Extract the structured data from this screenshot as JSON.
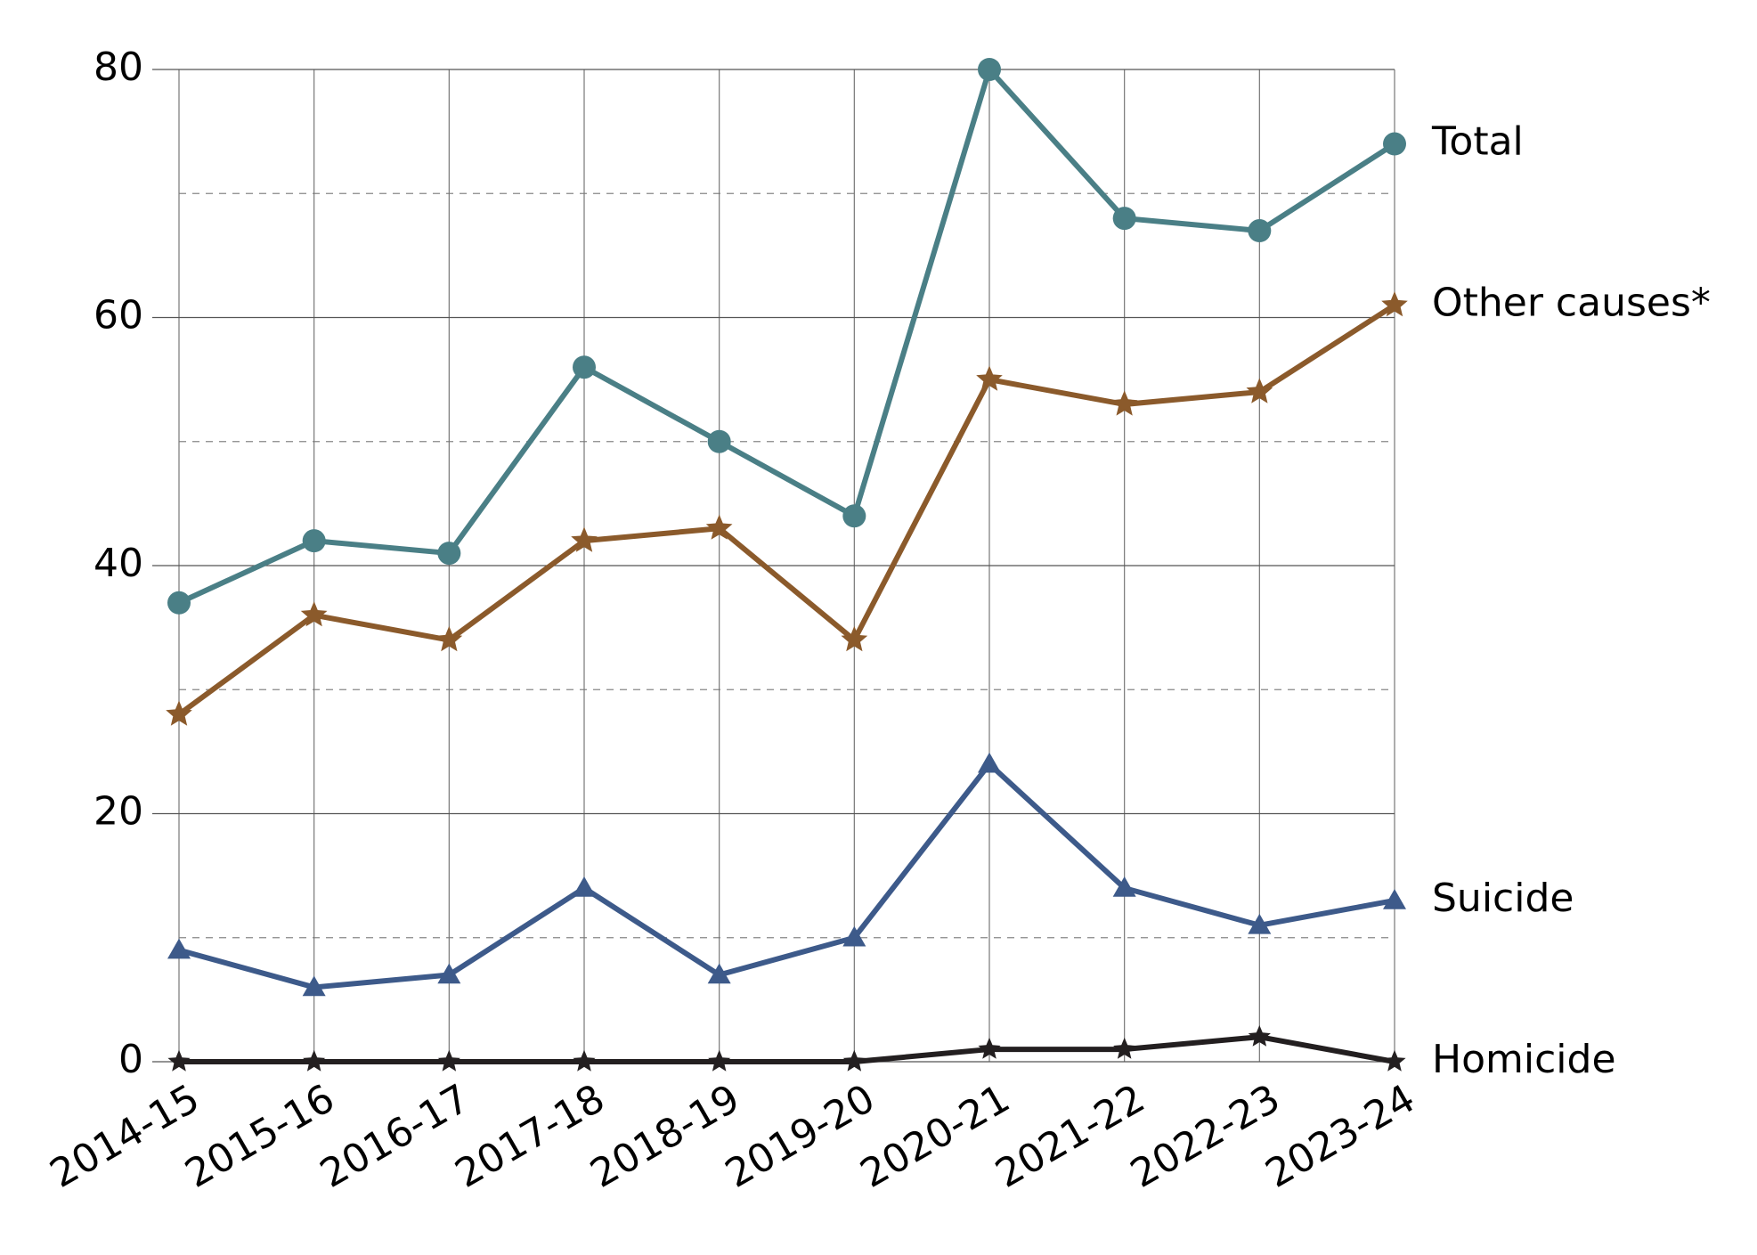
{
  "chart_data": {
    "type": "line",
    "categories": [
      "2014-15",
      "2015-16",
      "2016-17",
      "2017-18",
      "2018-19",
      "2019-20",
      "2020-21",
      "2021-22",
      "2022-23",
      "2023-24"
    ],
    "series": [
      {
        "name": "Total",
        "color": "#4a7f86",
        "marker": "circle",
        "values": [
          37,
          42,
          41,
          56,
          50,
          44,
          80,
          68,
          67,
          74
        ]
      },
      {
        "name": "Other causes*",
        "color": "#8b5a2b",
        "marker": "star",
        "values": [
          28,
          36,
          34,
          42,
          43,
          34,
          55,
          53,
          54,
          61
        ]
      },
      {
        "name": "Suicide",
        "color": "#3d5a8a",
        "marker": "triangle",
        "values": [
          9,
          6,
          7,
          14,
          7,
          10,
          24,
          14,
          11,
          13
        ]
      },
      {
        "name": "Homicide",
        "color": "#231f20",
        "marker": "star",
        "values": [
          0,
          0,
          0,
          0,
          0,
          0,
          1,
          1,
          2,
          0
        ]
      }
    ],
    "ylim": [
      0,
      80
    ],
    "yticks": [
      0,
      20,
      40,
      60,
      80
    ],
    "minor_gridlines": [
      10,
      30,
      50,
      70
    ],
    "grid": true
  }
}
